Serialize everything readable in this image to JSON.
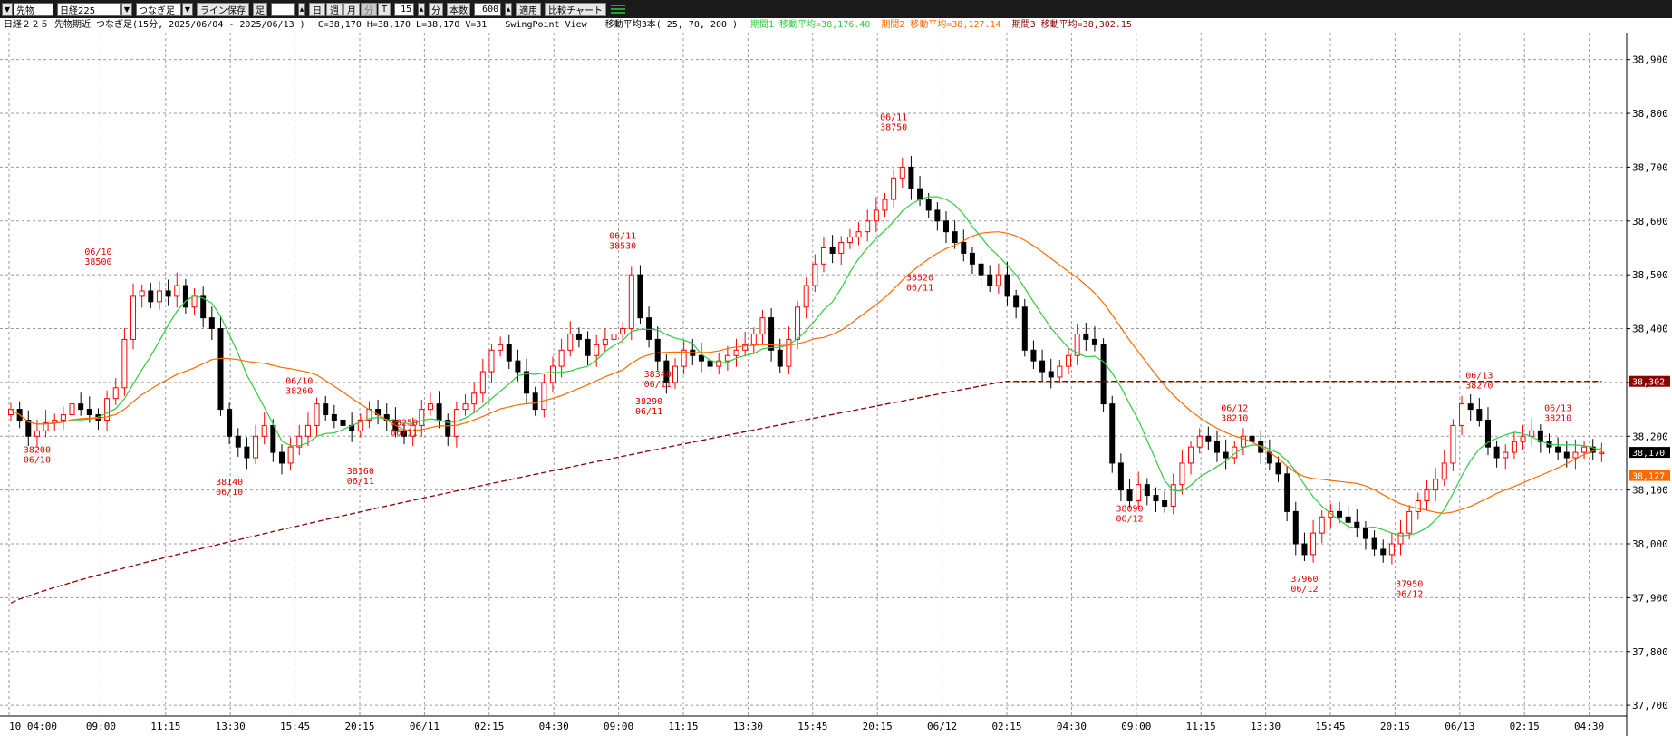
{
  "toolbar": {
    "market_select": "先物",
    "symbol_select": "日経225",
    "contract_select": "つなぎ足",
    "line_save_button": "ライン保存",
    "foot_label": "足",
    "period_buttons": [
      "日",
      "週",
      "月",
      "分",
      "T"
    ],
    "interval_value": "15",
    "interval_unit": "分",
    "bar_count_label": "本数",
    "bar_count_value": "600",
    "apply_button": "適用",
    "compare_button": "比較チャート",
    "indicator_icon": "chart-lines-icon"
  },
  "info": {
    "title": "日経２２５ 先物期近 つなぎ足(15分, 2025/06/04 - 2025/06/13 )",
    "ohlcv": "C=38,170 H=38,170 L=38,170 V=31",
    "view": "SwingPoint View",
    "ma_label": "移動平均3本( 25, 70, 200 )",
    "ma1_text": "期間1 移動平均=38,176.40",
    "ma2_text": "期間2 移動平均=38,127.14",
    "ma3_text": "期間3 移動平均=38,302.15"
  },
  "colors": {
    "up_candle": "#ff0000",
    "down_candle": "#000000",
    "ma1": "#2ecc40",
    "ma2": "#ff6a00",
    "ma3": "#8b0000",
    "annotation": "#e00000"
  },
  "price_labels": {
    "ma3_value": "38,302",
    "close_value": "38,170",
    "ma2_value": "38,127"
  },
  "chart_data": {
    "type": "candlestick",
    "title": "日経２２５ 先物期近 つなぎ足(15分, 2025/06/04 - 2025/06/13 )",
    "y_axis": {
      "position": "right",
      "ticks": [
        "38,900",
        "38,800",
        "38,700",
        "38,600",
        "38,500",
        "38,400",
        "38,300",
        "38,200",
        "38,100",
        "38,000",
        "37,900",
        "37,800",
        "37,700"
      ],
      "ylim": [
        37680,
        38950
      ]
    },
    "x_axis_labels": [
      "10 04:00",
      "09:00",
      "11:15",
      "13:30",
      "15:45",
      "20:15",
      "06/11",
      "02:15",
      "04:30",
      "09:00",
      "11:15",
      "13:30",
      "15:45",
      "20:15",
      "06/12",
      "02:15",
      "04:30",
      "09:00",
      "11:15",
      "13:30",
      "15:45",
      "20:15",
      "06/13",
      "02:15",
      "04:30"
    ],
    "grid": true,
    "swing_points": [
      {
        "date": "06/10",
        "price": "38500",
        "type": "high"
      },
      {
        "date": "06/10",
        "price": "38200",
        "type": "low"
      },
      {
        "date": "06/10",
        "price": "38140",
        "type": "low"
      },
      {
        "date": "06/10",
        "price": "38260",
        "type": "high"
      },
      {
        "date": "06/11",
        "price": "38160",
        "type": "low"
      },
      {
        "date": "06/11",
        "price": "38250",
        "type": "low"
      },
      {
        "date": "06/11",
        "price": "38530",
        "type": "high"
      },
      {
        "date": "06/11",
        "price": "38290",
        "type": "low"
      },
      {
        "date": "06/11",
        "price": "38340",
        "type": "low"
      },
      {
        "date": "06/11",
        "price": "38750",
        "type": "high"
      },
      {
        "date": "06/11",
        "price": "38520",
        "type": "low"
      },
      {
        "date": "06/12",
        "price": "38090",
        "type": "low"
      },
      {
        "date": "06/12",
        "price": "38210",
        "type": "high"
      },
      {
        "date": "06/12",
        "price": "37960",
        "type": "low"
      },
      {
        "date": "06/12",
        "price": "37950",
        "type": "low"
      },
      {
        "date": "06/13",
        "price": "38270",
        "type": "high"
      },
      {
        "date": "06/13",
        "price": "38210",
        "type": "high"
      }
    ],
    "candles_close": [
      38250,
      38230,
      38200,
      38210,
      38225,
      38230,
      38240,
      38260,
      38250,
      38240,
      38230,
      38270,
      38290,
      38380,
      38460,
      38470,
      38450,
      38470,
      38460,
      38480,
      38440,
      38460,
      38420,
      38400,
      38250,
      38200,
      38180,
      38160,
      38200,
      38220,
      38170,
      38150,
      38180,
      38200,
      38220,
      38260,
      38240,
      38230,
      38220,
      38210,
      38230,
      38250,
      38240,
      38230,
      38210,
      38200,
      38220,
      38250,
      38260,
      38230,
      38200,
      38250,
      38260,
      38280,
      38320,
      38360,
      38370,
      38340,
      38320,
      38280,
      38250,
      38300,
      38330,
      38360,
      38390,
      38380,
      38350,
      38370,
      38380,
      38390,
      38400,
      38500,
      38420,
      38380,
      38340,
      38300,
      38330,
      38360,
      38350,
      38340,
      38330,
      38340,
      38350,
      38360,
      38370,
      38390,
      38420,
      38360,
      38330,
      38380,
      38440,
      38480,
      38520,
      38550,
      38540,
      38560,
      38570,
      38580,
      38600,
      38620,
      38640,
      38680,
      38700,
      38660,
      38640,
      38620,
      38600,
      38580,
      38560,
      38540,
      38520,
      38500,
      38480,
      38500,
      38460,
      38440,
      38360,
      38340,
      38320,
      38310,
      38330,
      38350,
      38390,
      38380,
      38370,
      38260,
      38150,
      38100,
      38080,
      38110,
      38090,
      38080,
      38070,
      38110,
      38150,
      38180,
      38200,
      38190,
      38170,
      38160,
      38180,
      38200,
      38190,
      38170,
      38150,
      38130,
      38060,
      38000,
      37980,
      38020,
      38050,
      38060,
      38050,
      38040,
      38030,
      38010,
      37990,
      37980,
      38000,
      38020,
      38060,
      38080,
      38100,
      38120,
      38150,
      38220,
      38260,
      38250,
      38230,
      38180,
      38160,
      38170,
      38190,
      38200,
      38210,
      38190,
      38180,
      38170,
      38160,
      38170,
      38180,
      38170,
      38170
    ]
  }
}
